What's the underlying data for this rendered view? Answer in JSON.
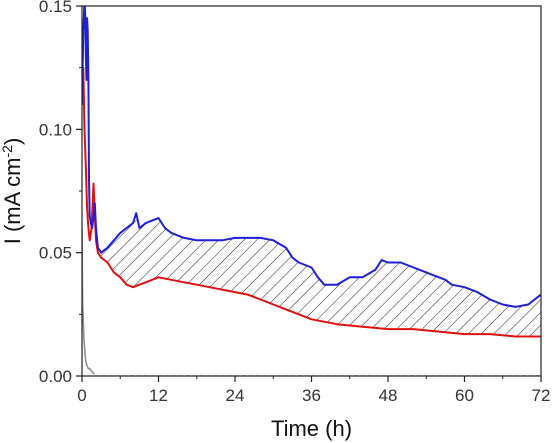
{
  "chart_data": {
    "type": "line",
    "title": "",
    "xlabel": "Time (h)",
    "ylabel_main": "I (mA cm",
    "ylabel_sup": "-2",
    "ylabel_close": ")",
    "xlim": [
      0,
      72
    ],
    "ylim": [
      0,
      0.15
    ],
    "xticks": [
      0,
      12,
      24,
      36,
      48,
      60,
      72
    ],
    "yticks": [
      0.0,
      0.05,
      0.1,
      0.15
    ],
    "xtick_labels": [
      "0",
      "12",
      "24",
      "36",
      "48",
      "60",
      "72"
    ],
    "ytick_labels": [
      "0.00",
      "0.05",
      "0.10",
      "0.15"
    ],
    "grid": false,
    "legend": "none",
    "shaded_region": {
      "between": [
        "blue",
        "red"
      ],
      "x_range": [
        2.5,
        72
      ],
      "pattern": "diagonal hatch"
    },
    "series": [
      {
        "color": "#1f1fd6",
        "style": "solid",
        "x": [
          0,
          0.2,
          0.4,
          0.5,
          0.6,
          0.7,
          0.8,
          0.9,
          1.0,
          1.1,
          1.2,
          1.4,
          1.6,
          1.8,
          2.0,
          2.2,
          2.5,
          3,
          4,
          5,
          6,
          7,
          8,
          8.5,
          9,
          10,
          11,
          12,
          13,
          14,
          16,
          18,
          20,
          22,
          24,
          26,
          28,
          30,
          32,
          33,
          34,
          35,
          36,
          37,
          38,
          40,
          42,
          44,
          46,
          47,
          48,
          49,
          50,
          51,
          52,
          53,
          54,
          55,
          56,
          57,
          58,
          60,
          62,
          64,
          66,
          68,
          70,
          71,
          72
        ],
        "y": [
          0.11,
          0.14,
          0.152,
          0.147,
          0.13,
          0.12,
          0.145,
          0.14,
          0.12,
          0.08,
          0.065,
          0.062,
          0.06,
          0.065,
          0.07,
          0.06,
          0.052,
          0.05,
          0.052,
          0.055,
          0.058,
          0.06,
          0.062,
          0.066,
          0.06,
          0.062,
          0.063,
          0.064,
          0.06,
          0.058,
          0.056,
          0.055,
          0.055,
          0.055,
          0.056,
          0.056,
          0.056,
          0.055,
          0.052,
          0.048,
          0.046,
          0.045,
          0.044,
          0.04,
          0.037,
          0.037,
          0.04,
          0.04,
          0.043,
          0.047,
          0.046,
          0.046,
          0.046,
          0.045,
          0.044,
          0.043,
          0.042,
          0.041,
          0.04,
          0.039,
          0.037,
          0.036,
          0.034,
          0.031,
          0.029,
          0.028,
          0.029,
          0.031,
          0.033
        ]
      },
      {
        "color": "#e01010",
        "style": "solid",
        "x": [
          0,
          0.2,
          0.4,
          0.6,
          0.8,
          1.0,
          1.2,
          1.5,
          1.8,
          2.0,
          2.2,
          2.5,
          3,
          4,
          5,
          6,
          7,
          8,
          9,
          10,
          11,
          12,
          14,
          16,
          18,
          20,
          22,
          24,
          26,
          28,
          30,
          32,
          34,
          36,
          40,
          44,
          48,
          52,
          56,
          60,
          64,
          68,
          72
        ],
        "y": [
          0.11,
          0.125,
          0.1,
          0.085,
          0.068,
          0.06,
          0.055,
          0.06,
          0.078,
          0.065,
          0.055,
          0.05,
          0.048,
          0.046,
          0.042,
          0.04,
          0.037,
          0.036,
          0.037,
          0.038,
          0.039,
          0.04,
          0.039,
          0.038,
          0.037,
          0.036,
          0.035,
          0.034,
          0.033,
          0.031,
          0.029,
          0.027,
          0.025,
          0.023,
          0.021,
          0.02,
          0.019,
          0.019,
          0.018,
          0.017,
          0.017,
          0.016,
          0.016
        ]
      },
      {
        "color": "#909090",
        "style": "solid",
        "x": [
          0,
          0.1,
          0.2,
          0.3,
          0.4,
          0.5,
          0.6,
          0.8,
          1.0,
          1.2,
          1.5,
          1.8,
          2.0
        ],
        "y": [
          0.06,
          0.03,
          0.022,
          0.015,
          0.012,
          0.008,
          0.006,
          0.004,
          0.003,
          0.003,
          0.002,
          0.001,
          0.001
        ]
      },
      {
        "color": "#909090",
        "style": "dashed",
        "x": [
          2,
          72
        ],
        "y": [
          0.0,
          0.0
        ]
      }
    ]
  }
}
